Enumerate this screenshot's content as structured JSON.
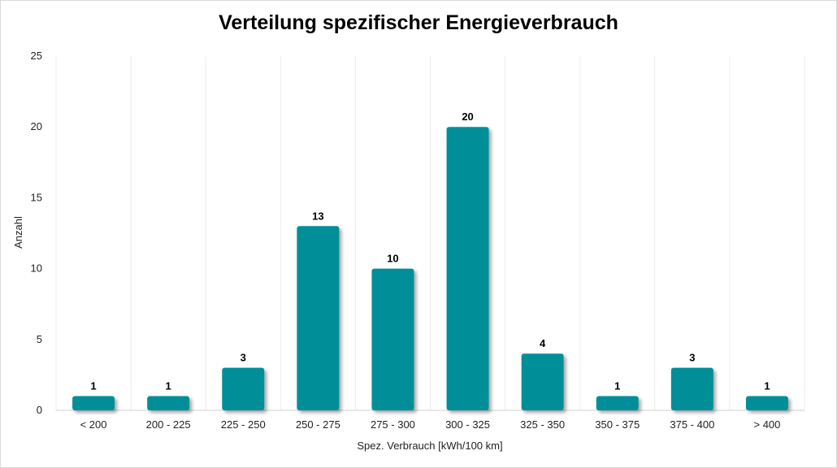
{
  "chart_data": {
    "type": "bar",
    "title": "Verteilung spezifischer Energieverbrauch",
    "xlabel": "Spez. Verbrauch [kWh/100 km]",
    "ylabel": "Anzahl",
    "categories": [
      "< 200",
      "200 - 225",
      "225 - 250",
      "250 - 275",
      "275 - 300",
      "300 - 325",
      "325 - 350",
      "350 - 375",
      "375 - 400",
      "> 400"
    ],
    "values": [
      1,
      1,
      3,
      13,
      10,
      20,
      4,
      1,
      3,
      1
    ],
    "ylim": [
      0,
      25
    ],
    "yticks": [
      0,
      5,
      10,
      15,
      20,
      25
    ],
    "grid": "vertical",
    "legend": "none",
    "bar_color": "#008F98",
    "data_labels": true
  }
}
